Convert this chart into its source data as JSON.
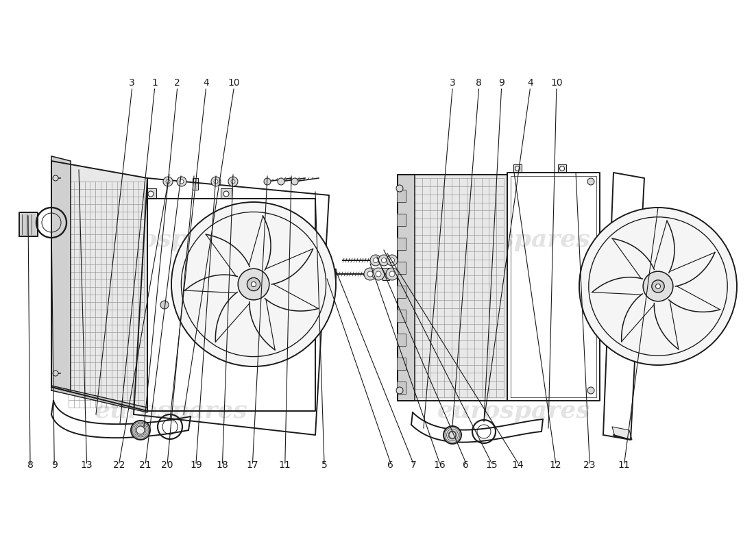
{
  "bg_color": "#ffffff",
  "line_color": "#1a1a1a",
  "watermark_color": "#cccccc",
  "lw_main": 1.4,
  "lw_thin": 0.7,
  "lw_hatch": 0.4,
  "left_top_labels": [
    [
      "3",
      0.175
    ],
    [
      "1",
      0.205
    ],
    [
      "2",
      0.235
    ],
    [
      "4",
      0.275
    ],
    [
      "10",
      0.31
    ]
  ],
  "left_bot_labels": [
    [
      "8",
      0.04
    ],
    [
      "9",
      0.072
    ],
    [
      "13",
      0.115
    ],
    [
      "22",
      0.158
    ],
    [
      "21",
      0.193
    ],
    [
      "20",
      0.222
    ],
    [
      "19",
      0.26
    ],
    [
      "18",
      0.293
    ],
    [
      "17",
      0.335
    ],
    [
      "11",
      0.378
    ],
    [
      "5",
      0.43
    ]
  ],
  "right_top_labels": [
    [
      "3",
      0.6
    ],
    [
      "8",
      0.635
    ],
    [
      "9",
      0.665
    ],
    [
      "4",
      0.703
    ],
    [
      "10",
      0.738
    ]
  ],
  "right_bot_labels": [
    [
      "6",
      0.518
    ],
    [
      "7",
      0.548
    ],
    [
      "16",
      0.583
    ],
    [
      "6",
      0.618
    ],
    [
      "15",
      0.652
    ],
    [
      "14",
      0.687
    ],
    [
      "12",
      0.737
    ],
    [
      "23",
      0.782
    ],
    [
      "11",
      0.828
    ]
  ]
}
